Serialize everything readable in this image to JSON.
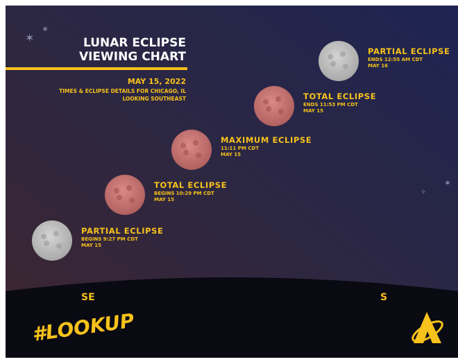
{
  "header": {
    "title": [
      "LUNAR ECLIPSE",
      "VIEWING CHART"
    ],
    "date": "MAY 15, 2022",
    "details": [
      "TIMES & ECLIPSE DETAILS FOR CHICAGO, IL",
      "LOOKING SOUTHEAST"
    ]
  },
  "phases": [
    {
      "name": "PARTIAL ECLIPSE",
      "time": "BEGINS 9:27 PM CDT",
      "date": "MAY 15"
    },
    {
      "name": "TOTAL ECLIPSE",
      "time": "BEGINS 10:29 PM CDT",
      "date": "MAY 15"
    },
    {
      "name": "MAXIMUM ECLIPSE",
      "time": "11:11 PM CDT",
      "date": "MAY 15"
    },
    {
      "name": "TOTAL ECLIPSE",
      "time": "ENDS 11:53 PM CDT",
      "date": "MAY 15"
    },
    {
      "name": "PARTIAL ECLIPSE",
      "time": "ENDS 12:55 AM CDT",
      "date": "MAY 16"
    }
  ],
  "directions": [
    "SE",
    "S"
  ],
  "hashtag": "#LOOKUP"
}
